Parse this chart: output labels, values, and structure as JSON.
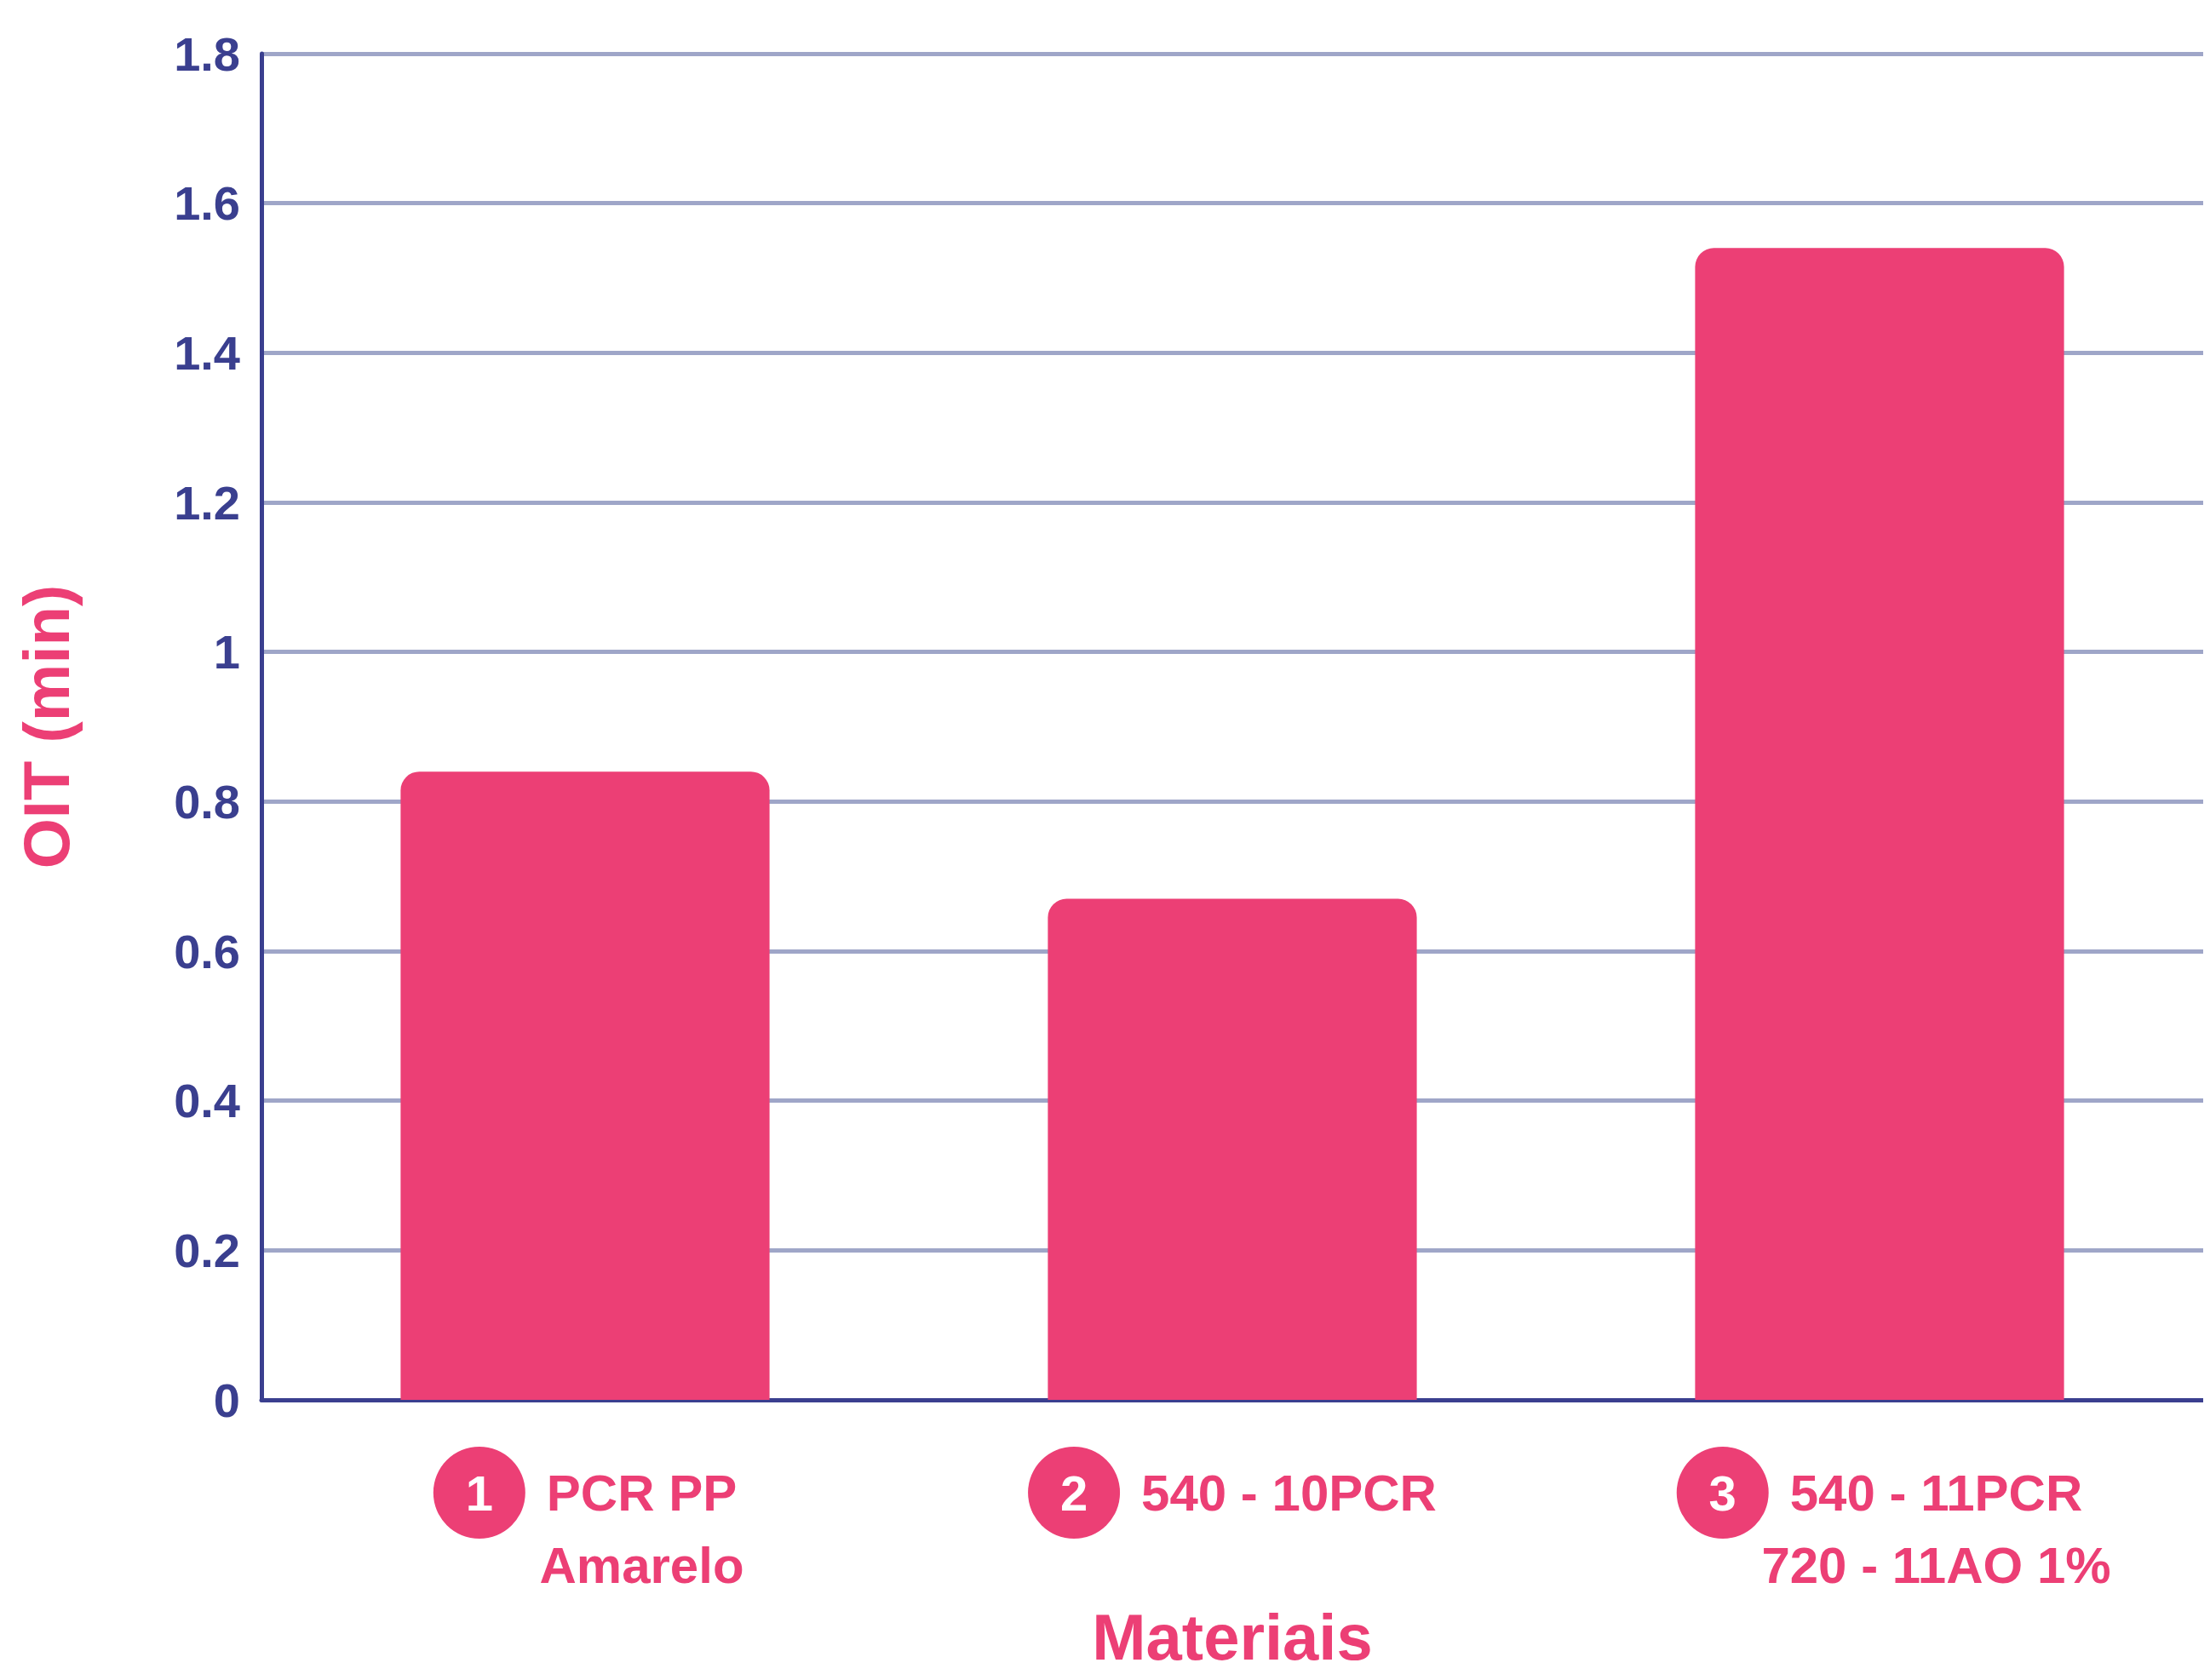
{
  "chart_data": {
    "type": "bar",
    "xlabel": "Materiais",
    "ylabel": "OIT (min)",
    "categories": [
      "1 PCR PP\nAmarelo",
      "2 540 - 10PCR",
      "3 540 - 11PCR\n720 - 11AO 1%"
    ],
    "values": [
      0.84,
      0.67,
      1.54
    ],
    "color": "#ec3f75",
    "ylim": [
      0,
      1.8
    ],
    "yticks": [
      0,
      0.2,
      0.4,
      0.6,
      0.8,
      1,
      1.2,
      1.4,
      1.6,
      1.8
    ],
    "grid": "y"
  }
}
